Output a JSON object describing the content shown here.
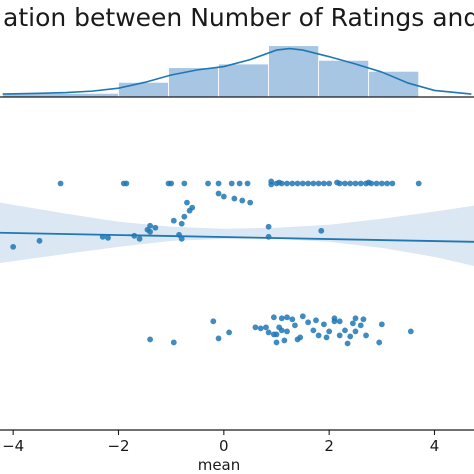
{
  "chart_data": {
    "type": "scatter",
    "title": "ation between Number of Ratings and",
    "xlabel": "mean",
    "ylabel": "",
    "xlim": [
      -4.25,
      4.75
    ],
    "x_ticks": [
      -4,
      -2,
      0,
      2,
      4
    ],
    "x_tick_labels": [
      "−4",
      "−2",
      "0",
      "2",
      "4"
    ],
    "grid": false,
    "colors": {
      "accent": "#1f77b4",
      "hist_fill": "#a6c6e3",
      "band": "#dbe7f3",
      "axis": "#1a1a1a"
    },
    "marginal_histogram": {
      "bins": [
        {
          "x0": -4.2,
          "x1": -2.0,
          "density": 0.01
        },
        {
          "x0": -2.0,
          "x1": -1.05,
          "density": 0.04
        },
        {
          "x0": -1.05,
          "x1": -0.1,
          "density": 0.08
        },
        {
          "x0": -0.1,
          "x1": 0.85,
          "density": 0.09
        },
        {
          "x0": 0.85,
          "x1": 1.8,
          "density": 0.14
        },
        {
          "x0": 1.8,
          "x1": 2.75,
          "density": 0.1
        },
        {
          "x0": 2.75,
          "x1": 3.7,
          "density": 0.07
        }
      ],
      "kde": [
        [
          -4.2,
          0.008
        ],
        [
          -3.5,
          0.01
        ],
        [
          -3.0,
          0.012
        ],
        [
          -2.5,
          0.016
        ],
        [
          -2.0,
          0.024
        ],
        [
          -1.5,
          0.04
        ],
        [
          -1.0,
          0.06
        ],
        [
          -0.5,
          0.074
        ],
        [
          0.0,
          0.083
        ],
        [
          0.5,
          0.102
        ],
        [
          1.0,
          0.128
        ],
        [
          1.25,
          0.132
        ],
        [
          1.5,
          0.128
        ],
        [
          2.0,
          0.11
        ],
        [
          2.5,
          0.09
        ],
        [
          3.0,
          0.068
        ],
        [
          3.5,
          0.038
        ],
        [
          4.0,
          0.018
        ],
        [
          4.7,
          0.008
        ]
      ],
      "ylim": [
        0,
        0.15
      ]
    },
    "scatter": {
      "ylim": [
        -1.6,
        1.6
      ],
      "points": [
        [
          -3.1,
          0.85
        ],
        [
          -1.9,
          0.85
        ],
        [
          -1.85,
          0.85
        ],
        [
          -1.05,
          0.85
        ],
        [
          -1.0,
          0.85
        ],
        [
          -0.75,
          0.85
        ],
        [
          -0.3,
          0.85
        ],
        [
          -0.1,
          0.85
        ],
        [
          0.15,
          0.85
        ],
        [
          0.3,
          0.85
        ],
        [
          0.45,
          0.85
        ],
        [
          0.9,
          0.84
        ],
        [
          1.0,
          0.85
        ],
        [
          1.1,
          0.85
        ],
        [
          1.2,
          0.85
        ],
        [
          1.3,
          0.85
        ],
        [
          1.4,
          0.85
        ],
        [
          1.5,
          0.85
        ],
        [
          1.6,
          0.85
        ],
        [
          1.7,
          0.85
        ],
        [
          1.8,
          0.85
        ],
        [
          1.9,
          0.85
        ],
        [
          2.0,
          0.85
        ],
        [
          2.2,
          0.85
        ],
        [
          2.3,
          0.85
        ],
        [
          2.4,
          0.85
        ],
        [
          2.5,
          0.85
        ],
        [
          2.6,
          0.85
        ],
        [
          2.7,
          0.85
        ],
        [
          2.8,
          0.85
        ],
        [
          2.9,
          0.85
        ],
        [
          3.0,
          0.85
        ],
        [
          3.1,
          0.85
        ],
        [
          3.2,
          0.85
        ],
        [
          3.7,
          0.85
        ],
        [
          0.9,
          0.87
        ],
        [
          1.05,
          0.86
        ],
        [
          2.15,
          0.86
        ],
        [
          2.75,
          0.86
        ],
        [
          -0.1,
          0.75
        ],
        [
          0.0,
          0.72
        ],
        [
          0.2,
          0.7
        ],
        [
          0.35,
          0.68
        ],
        [
          0.5,
          0.66
        ],
        [
          -0.7,
          0.66
        ],
        [
          -0.6,
          0.61
        ],
        [
          -0.65,
          0.58
        ],
        [
          -0.75,
          0.52
        ],
        [
          -0.95,
          0.48
        ],
        [
          -0.8,
          0.45
        ],
        [
          -1.4,
          0.43
        ],
        [
          -1.4,
          0.37
        ],
        [
          -1.3,
          0.41
        ],
        [
          -1.45,
          0.39
        ],
        [
          1.85,
          0.38
        ],
        [
          -0.85,
          0.34
        ],
        [
          -0.8,
          0.3
        ],
        [
          0.85,
          0.42
        ],
        [
          0.85,
          0.32
        ],
        [
          -1.7,
          0.33
        ],
        [
          -2.3,
          0.32
        ],
        [
          -2.2,
          0.31
        ],
        [
          -1.6,
          0.3
        ],
        [
          -3.5,
          0.28
        ],
        [
          -4.0,
          0.22
        ],
        [
          0.95,
          -0.48
        ],
        [
          1.1,
          -0.49
        ],
        [
          1.2,
          -0.48
        ],
        [
          1.3,
          -0.5
        ],
        [
          1.5,
          -0.47
        ],
        [
          1.75,
          -0.51
        ],
        [
          2.1,
          -0.49
        ],
        [
          2.2,
          -0.52
        ],
        [
          2.5,
          -0.49
        ],
        [
          2.65,
          -0.5
        ],
        [
          -0.2,
          -0.52
        ],
        [
          0.6,
          -0.58
        ],
        [
          0.7,
          -0.59
        ],
        [
          0.8,
          -0.58
        ],
        [
          0.85,
          -0.63
        ],
        [
          0.95,
          -0.65
        ],
        [
          1.05,
          -0.58
        ],
        [
          1.1,
          -0.61
        ],
        [
          1.2,
          -0.62
        ],
        [
          1.35,
          -0.56
        ],
        [
          1.45,
          -0.68
        ],
        [
          1.7,
          -0.61
        ],
        [
          1.8,
          -0.66
        ],
        [
          2.0,
          -0.62
        ],
        [
          2.2,
          -0.66
        ],
        [
          2.3,
          -0.61
        ],
        [
          2.5,
          -0.62
        ],
        [
          2.7,
          -0.66
        ],
        [
          2.95,
          -0.73
        ],
        [
          2.1,
          -0.52
        ],
        [
          1.6,
          -0.53
        ],
        [
          1.9,
          -0.55
        ],
        [
          2.6,
          -0.56
        ],
        [
          0.1,
          -0.63
        ],
        [
          -0.1,
          -0.69
        ],
        [
          1.0,
          -0.73
        ],
        [
          1.15,
          -0.71
        ],
        [
          1.4,
          -0.7
        ],
        [
          1.95,
          -0.68
        ],
        [
          2.4,
          -0.67
        ],
        [
          3.55,
          -0.62
        ],
        [
          2.35,
          -0.74
        ],
        [
          -1.4,
          -0.7
        ],
        [
          -0.95,
          -0.73
        ],
        [
          1.0,
          -0.65
        ],
        [
          2.45,
          -0.54
        ],
        [
          3.0,
          -0.55
        ]
      ]
    },
    "regression": {
      "line": [
        [
          -4.25,
          0.36
        ],
        [
          4.75,
          0.27
        ]
      ],
      "band_upper": [
        [
          -4.25,
          0.66
        ],
        [
          -3.0,
          0.55
        ],
        [
          -2.0,
          0.47
        ],
        [
          -1.0,
          0.42
        ],
        [
          0.0,
          0.4
        ],
        [
          1.0,
          0.41
        ],
        [
          2.0,
          0.44
        ],
        [
          3.0,
          0.5
        ],
        [
          4.0,
          0.57
        ],
        [
          4.75,
          0.63
        ]
      ],
      "band_lower": [
        [
          -4.25,
          0.06
        ],
        [
          -3.0,
          0.15
        ],
        [
          -2.0,
          0.22
        ],
        [
          -1.0,
          0.28
        ],
        [
          0.0,
          0.3
        ],
        [
          1.0,
          0.3
        ],
        [
          2.0,
          0.27
        ],
        [
          3.0,
          0.21
        ],
        [
          4.0,
          0.12
        ],
        [
          4.75,
          0.03
        ]
      ]
    }
  }
}
